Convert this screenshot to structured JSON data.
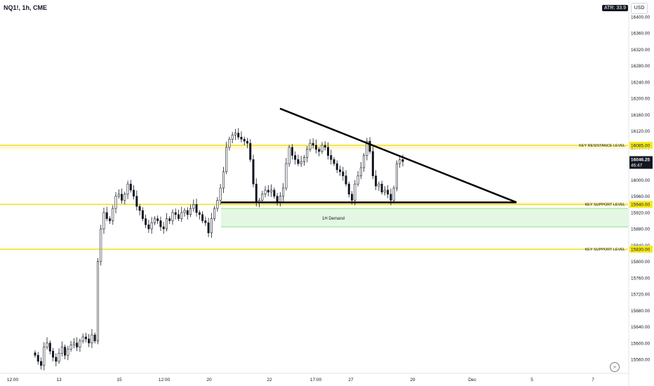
{
  "header": {
    "symbol_title": "NQ1!, 1h, CME",
    "atr_label": "ATR: 33.9",
    "currency": "USD"
  },
  "colors": {
    "level_line": "#f2e01a",
    "level_label_bg": "#f7ea1e",
    "zone_fill": "#fdf8d8",
    "demand_fill": "#e3f7e3",
    "demand_border": "#8fe08f",
    "candle": "#131722",
    "trendline": "#000000",
    "price_badge_bg": "#131722"
  },
  "chart_data": {
    "type": "candlestick",
    "symbol": "NQ1!",
    "interval": "1h",
    "exchange": "CME",
    "ylim": [
      15520,
      16420
    ],
    "y_ticks": [
      "16400.00",
      "16360.00",
      "16320.00",
      "16280.00",
      "16240.00",
      "16200.00",
      "16160.00",
      "16120.00",
      "16080.00",
      "16040.00",
      "16000.00",
      "15960.00",
      "15920.00",
      "15880.00",
      "15840.00",
      "15800.00",
      "15760.00",
      "15720.00",
      "15680.00",
      "15640.00",
      "15600.00",
      "15560.00"
    ],
    "x_ticks": [
      "12:00",
      "13",
      "15",
      "12:00",
      "20",
      "22",
      "17:00",
      "27",
      "29",
      "Dec",
      "5",
      "7"
    ],
    "close_series": [
      15570,
      15555,
      15545,
      15590,
      15600,
      15580,
      15565,
      15555,
      15575,
      15590,
      15570,
      15585,
      15595,
      15600,
      15590,
      15605,
      15615,
      15610,
      15600,
      15620,
      15605,
      15800,
      15880,
      15920,
      15905,
      15900,
      15930,
      15960,
      15965,
      15950,
      15965,
      15990,
      15975,
      15960,
      15935,
      15925,
      15905,
      15890,
      15880,
      15895,
      15905,
      15900,
      15885,
      15880,
      15905,
      15900,
      15920,
      15915,
      15905,
      15920,
      15925,
      15915,
      15930,
      15940,
      15920,
      15915,
      15900,
      15895,
      15870,
      15905,
      15930,
      15950,
      15980,
      16020,
      16080,
      16100,
      16110,
      16115,
      16105,
      16100,
      16095,
      16090,
      16050,
      15990,
      15945,
      15950,
      15965,
      15975,
      15970,
      15975,
      15960,
      15945,
      15960,
      15980,
      16040,
      16080,
      16060,
      16050,
      16040,
      16045,
      16055,
      16075,
      16090,
      16085,
      16075,
      16070,
      16085,
      16080,
      16060,
      16050,
      16040,
      16025,
      16020,
      16010,
      15990,
      15965,
      15950,
      15990,
      16010,
      16030,
      16060,
      16095,
      16070,
      16010,
      15985,
      15990,
      15970,
      15975,
      15965,
      15950,
      15980,
      16040,
      16050,
      16045
    ],
    "levels": [
      {
        "label": "KEY RESISTANCE LEVEL",
        "price": "16085.00",
        "value": 16085
      },
      {
        "label": "KEY SUPPORT LEVEL",
        "price": "15940.00",
        "value": 15940
      },
      {
        "label": "KEY SUPPORT LEVEL",
        "price": "15830.00",
        "value": 15830
      }
    ],
    "zones": [
      {
        "label": "1H Demand",
        "top": 15930,
        "bottom": 15885
      }
    ],
    "triangle_pattern": {
      "upper_line_from": 16175,
      "upper_line_to": 15945,
      "base_line": 15945
    },
    "current_price": {
      "price": "16046.25",
      "countdown": "46:47",
      "value": 16046.25
    }
  }
}
